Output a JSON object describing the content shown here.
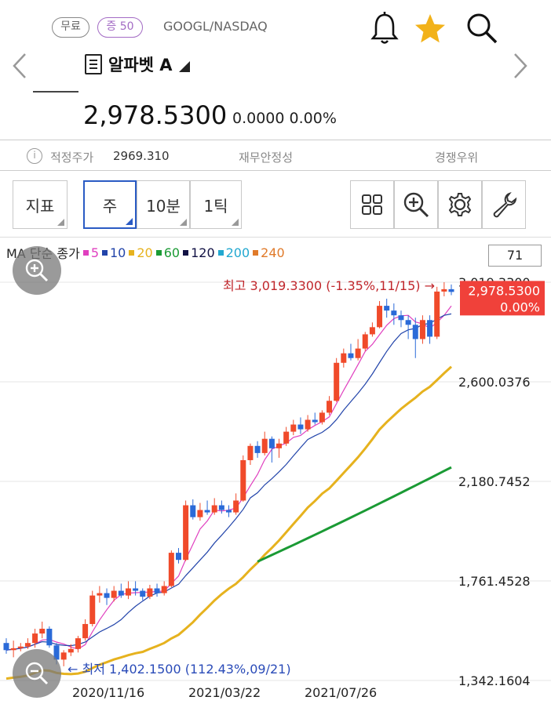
{
  "header": {
    "badge_free": "무료",
    "badge_margin": "증 50",
    "ticker": "GOOGL/NASDAQ",
    "stock_name": "알파벳 A",
    "price": "2,978.5300",
    "change": "0.0000 0.00%"
  },
  "icons": {
    "bell": "bell-icon",
    "star": "star-icon",
    "search": "search-icon",
    "prev": "chevron-left-icon",
    "next": "chevron-right-icon"
  },
  "info_bar": {
    "fair_price_label": "적정주가",
    "fair_price_value": "2969.310",
    "financial_label": "재무안정성",
    "competition_label": "경쟁우위"
  },
  "toolbar": {
    "indicator": "지표",
    "week": "주",
    "ten_min": "10분",
    "one_tick": "1틱"
  },
  "ma_legend": {
    "prefix": "MA 단순 종가",
    "items": [
      {
        "label": "5",
        "color": "#e03fbf"
      },
      {
        "label": "10",
        "color": "#2244aa"
      },
      {
        "label": "20",
        "color": "#e6b21e"
      },
      {
        "label": "60",
        "color": "#1a9a34"
      },
      {
        "label": "120",
        "color": "#111144"
      },
      {
        "label": "200",
        "color": "#22a8d0"
      },
      {
        "label": "240",
        "color": "#e07a2a"
      }
    ]
  },
  "period_value": "71",
  "colors": {
    "up": "#f04a2a",
    "down": "#2a6ad8",
    "current_bg": "#f0413a"
  },
  "chart_data": {
    "type": "candlestick",
    "y_ticks": [
      "3,019.3300",
      "2,600.0376",
      "2,180.7452",
      "1,761.4528",
      "1,342.1604"
    ],
    "y_tick_values": [
      3019.33,
      2600.0376,
      2180.7452,
      1761.4528,
      1342.1604
    ],
    "x_ticks": [
      "2020/11/16",
      "2021/03/22",
      "2021/07/26"
    ],
    "current_price": "2,978.5300",
    "current_change": "0.00%",
    "high_label": "최고 3,019.3300 (-1.35%,11/15)",
    "low_label": "최저 1,402.1500 (112.43%,09/21)",
    "ylim": [
      1342.1604,
      3019.33
    ],
    "candles": [
      [
        1500,
        1470,
        1520,
        1455
      ],
      [
        1470,
        1478,
        1510,
        1440
      ],
      [
        1478,
        1485,
        1500,
        1465
      ],
      [
        1485,
        1500,
        1520,
        1475
      ],
      [
        1500,
        1540,
        1560,
        1480
      ],
      [
        1540,
        1560,
        1590,
        1520
      ],
      [
        1560,
        1490,
        1570,
        1480
      ],
      [
        1490,
        1430,
        1500,
        1410
      ],
      [
        1430,
        1460,
        1470,
        1402
      ],
      [
        1460,
        1475,
        1495,
        1445
      ],
      [
        1475,
        1520,
        1530,
        1460
      ],
      [
        1520,
        1580,
        1600,
        1510
      ],
      [
        1580,
        1700,
        1720,
        1570
      ],
      [
        1700,
        1710,
        1740,
        1670
      ],
      [
        1710,
        1690,
        1730,
        1660
      ],
      [
        1690,
        1720,
        1740,
        1675
      ],
      [
        1720,
        1700,
        1750,
        1690
      ],
      [
        1700,
        1730,
        1760,
        1685
      ],
      [
        1730,
        1720,
        1760,
        1700
      ],
      [
        1720,
        1695,
        1730,
        1680
      ],
      [
        1695,
        1730,
        1745,
        1685
      ],
      [
        1730,
        1710,
        1750,
        1695
      ],
      [
        1710,
        1740,
        1760,
        1700
      ],
      [
        1740,
        1880,
        1890,
        1735
      ],
      [
        1880,
        1850,
        1900,
        1835
      ],
      [
        1850,
        2080,
        2100,
        1845
      ],
      [
        2080,
        2030,
        2105,
        2020
      ],
      [
        2030,
        2060,
        2090,
        2015
      ],
      [
        2060,
        2050,
        2100,
        2040
      ],
      [
        2050,
        2080,
        2110,
        2040
      ],
      [
        2080,
        2060,
        2100,
        2045
      ],
      [
        2060,
        2050,
        2080,
        2030
      ],
      [
        2050,
        2100,
        2130,
        2040
      ],
      [
        2100,
        2270,
        2290,
        2095
      ],
      [
        2270,
        2330,
        2340,
        2250
      ],
      [
        2330,
        2300,
        2350,
        2280
      ],
      [
        2300,
        2360,
        2390,
        2290
      ],
      [
        2360,
        2320,
        2370,
        2260
      ],
      [
        2320,
        2340,
        2360,
        2280
      ],
      [
        2340,
        2390,
        2410,
        2330
      ],
      [
        2390,
        2420,
        2440,
        2375
      ],
      [
        2420,
        2400,
        2450,
        2380
      ],
      [
        2400,
        2440,
        2460,
        2390
      ],
      [
        2440,
        2430,
        2470,
        2420
      ],
      [
        2430,
        2470,
        2480,
        2420
      ],
      [
        2470,
        2520,
        2540,
        2460
      ],
      [
        2520,
        2680,
        2700,
        2515
      ],
      [
        2680,
        2720,
        2740,
        2660
      ],
      [
        2720,
        2700,
        2760,
        2690
      ],
      [
        2700,
        2740,
        2780,
        2690
      ],
      [
        2740,
        2800,
        2810,
        2730
      ],
      [
        2800,
        2830,
        2850,
        2790
      ],
      [
        2830,
        2920,
        2940,
        2825
      ],
      [
        2920,
        2900,
        2950,
        2870
      ],
      [
        2900,
        2880,
        2930,
        2840
      ],
      [
        2880,
        2860,
        2900,
        2830
      ],
      [
        2860,
        2840,
        2880,
        2780
      ],
      [
        2840,
        2780,
        2870,
        2700
      ],
      [
        2780,
        2860,
        2880,
        2760
      ],
      [
        2860,
        2790,
        2880,
        2760
      ],
      [
        2790,
        2980,
        3000,
        2780
      ],
      [
        2980,
        2990,
        3019.33,
        2960
      ],
      [
        2990,
        2978.53,
        3010,
        2965
      ]
    ]
  }
}
